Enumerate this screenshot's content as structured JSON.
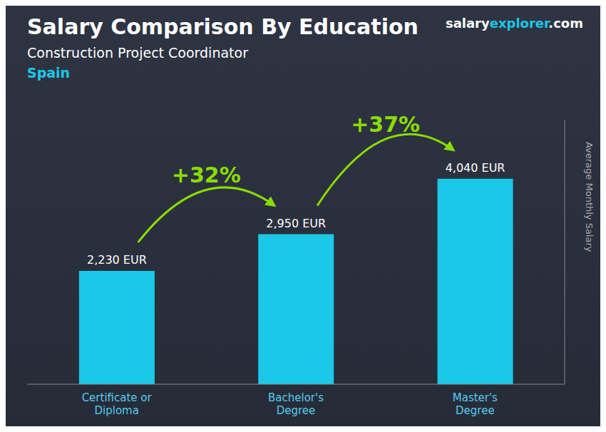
{
  "chart_data": {
    "type": "bar",
    "title": "Salary Comparison By Education",
    "subtitle": "Construction Project Coordinator",
    "country": "Spain",
    "brand": [
      "salary",
      "explorer",
      ".com"
    ],
    "y_label": "Average Monthly Salary",
    "categories": [
      "Certificate or\nDiploma",
      "Bachelor's\nDegree",
      "Master's\nDegree"
    ],
    "values": [
      2230,
      2950,
      4040
    ],
    "value_labels": [
      "2,230 EUR",
      "2,950 EUR",
      "4,040 EUR"
    ],
    "data_labels": true,
    "color": "#1BC8E8",
    "ylim": [
      0,
      5200
    ],
    "tick_labels": "x",
    "grid": false,
    "annotations": [
      {
        "text": "+32%",
        "from": "Certificate or\nDiploma",
        "to": "Bachelor's\nDegree",
        "color": "#88DD00"
      },
      {
        "text": "+37%",
        "from": "Bachelor's\nDegree",
        "to": "Master's\nDegree",
        "color": "#88DD00"
      }
    ]
  }
}
